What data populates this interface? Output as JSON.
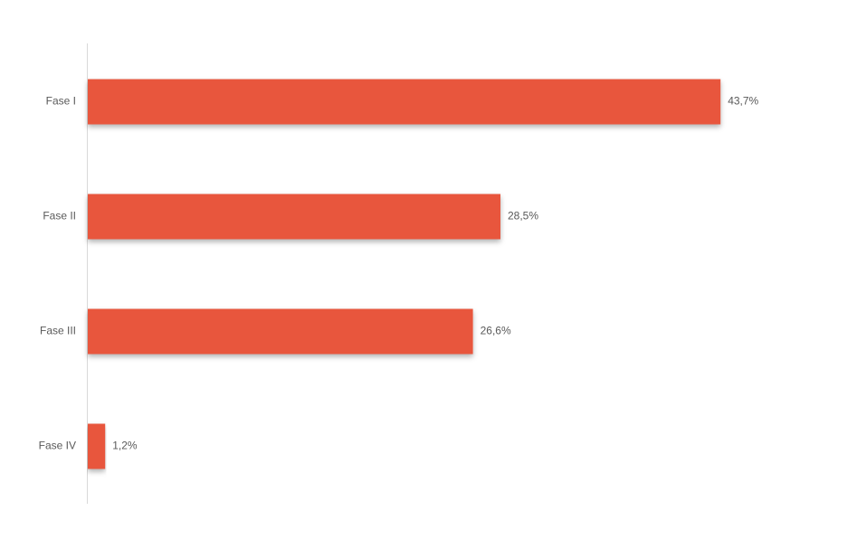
{
  "chart_data": {
    "type": "bar",
    "orientation": "horizontal",
    "categories": [
      "Fase I",
      "Fase II",
      "Fase III",
      "Fase IV"
    ],
    "values": [
      43.7,
      28.5,
      26.6,
      1.2
    ],
    "value_labels": [
      "43,7%",
      "28,5%",
      "26,6%",
      "1,2%"
    ],
    "color": "#e8573c"
  }
}
